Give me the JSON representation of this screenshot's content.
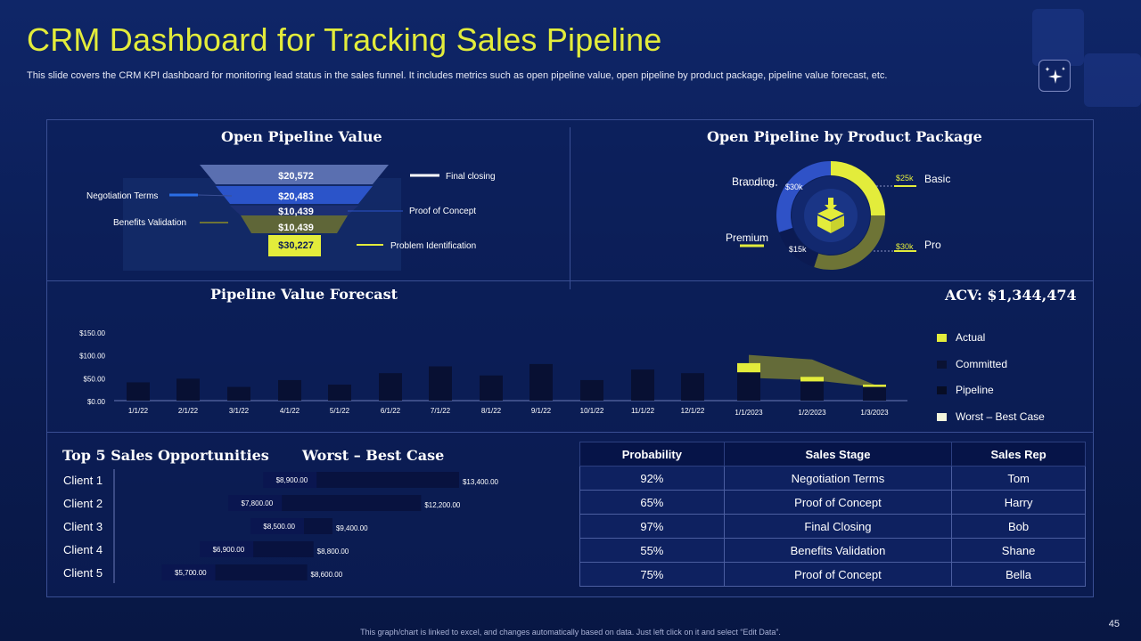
{
  "title": "CRM Dashboard for Tracking Sales Pipeline",
  "subtitle": "This slide covers the CRM KPI dashboard for monitoring lead status in the sales funnel. It includes metrics such as open pipeline value, open pipeline by product package, pipeline value forecast, etc.",
  "colors": {
    "accent": "#e3ec3b",
    "olive": "#6e7436",
    "dark": "#061448",
    "blue": "#2b54c9"
  },
  "funnel": {
    "title": "Open Pipeline Value",
    "levels": [
      "$20,572",
      "$20,483",
      "$10,439",
      "$10,439",
      "$30,227"
    ],
    "labels": {
      "final_closing": "Final closing",
      "negotiation": "Negotiation Terms",
      "proof": "Proof of Concept",
      "benefits": "Benefits Validation",
      "problem": "Problem Identification"
    }
  },
  "package": {
    "title": "Open Pipeline by Product Package",
    "branding": "Branding",
    "branding_val": "$30k",
    "basic": "Basic",
    "basic_val": "$25k",
    "premium": "Premium",
    "premium_val": "$15k",
    "pro": "Pro",
    "pro_val": "$30k"
  },
  "forecast": {
    "title": "Pipeline Value Forecast",
    "acv": "ACV: $1,344,474",
    "legend": [
      "Actual",
      "Committed",
      "Pipeline",
      "Worst – Best Case"
    ]
  },
  "opps": {
    "title": "Top 5 Sales Opportunities",
    "subtitle": "Worst – Best Case",
    "clients": [
      "Client 1",
      "Client 2",
      "Client 3",
      "Client 4",
      "Client 5"
    ]
  },
  "table": {
    "headers": [
      "Probability",
      "Sales Stage",
      "Sales Rep"
    ],
    "rows": [
      [
        "92%",
        "Negotiation Terms",
        "Tom"
      ],
      [
        "65%",
        "Proof of Concept",
        "Harry"
      ],
      [
        "97%",
        "Final Closing",
        "Bob"
      ],
      [
        "55%",
        "Benefits Validation",
        "Shane"
      ],
      [
        "75%",
        "Proof of Concept",
        "Bella"
      ]
    ]
  },
  "footer": "This graph/chart is linked to excel, and changes automatically based on data. Just left click on it and select “Edit Data”.",
  "page_number": "45",
  "chart_data": [
    {
      "type": "bar",
      "title": "Pipeline Value Forecast",
      "categories": [
        "1/1/22",
        "2/1/22",
        "3/1/22",
        "4/1/22",
        "5/1/22",
        "6/1/22",
        "7/1/22",
        "8/1/22",
        "9/1/22",
        "10/1/22",
        "11/1/22",
        "12/1/22",
        "1/1/2023",
        "1/2/2023",
        "1/3/2023"
      ],
      "series": [
        {
          "name": "Pipeline",
          "values": [
            40,
            48,
            30,
            45,
            35,
            60,
            75,
            55,
            80,
            45,
            68,
            60,
            62,
            42,
            30
          ]
        },
        {
          "name": "Actual",
          "values": [
            0,
            0,
            0,
            0,
            0,
            0,
            0,
            0,
            0,
            0,
            0,
            0,
            20,
            10,
            5
          ]
        }
      ],
      "band": {
        "name": "Worst – Best Case",
        "low": [
          null,
          null,
          null,
          null,
          null,
          null,
          null,
          null,
          null,
          null,
          null,
          null,
          50,
          45,
          30
        ],
        "high": [
          null,
          null,
          null,
          null,
          null,
          null,
          null,
          null,
          null,
          null,
          null,
          null,
          100,
          90,
          35
        ]
      },
      "yticks": [
        "$0.00",
        "$50.00",
        "$100.00",
        "$150.00"
      ],
      "ylim": [
        0,
        150
      ]
    },
    {
      "type": "bar",
      "title": "Worst – Best Case",
      "categories": [
        "Client 1",
        "Client 2",
        "Client 3",
        "Client 4",
        "Client 5"
      ],
      "worst": [
        8900,
        7800,
        8500,
        6900,
        5700
      ],
      "best": [
        13400,
        12200,
        9400,
        8800,
        8600
      ],
      "worst_labels": [
        "$8,900.00",
        "$7,800.00",
        "$8,500.00",
        "$6,900.00",
        "$5,700.00"
      ],
      "best_labels": [
        "$13,400.00",
        "$12,200.00",
        "$9,400.00",
        "$8,800.00",
        "$8,600.00"
      ]
    },
    {
      "type": "pie",
      "title": "Open Pipeline by Product Package",
      "labels": [
        "Basic",
        "Pro",
        "Premium",
        "Branding"
      ],
      "values": [
        25,
        30,
        15,
        30
      ]
    }
  ]
}
